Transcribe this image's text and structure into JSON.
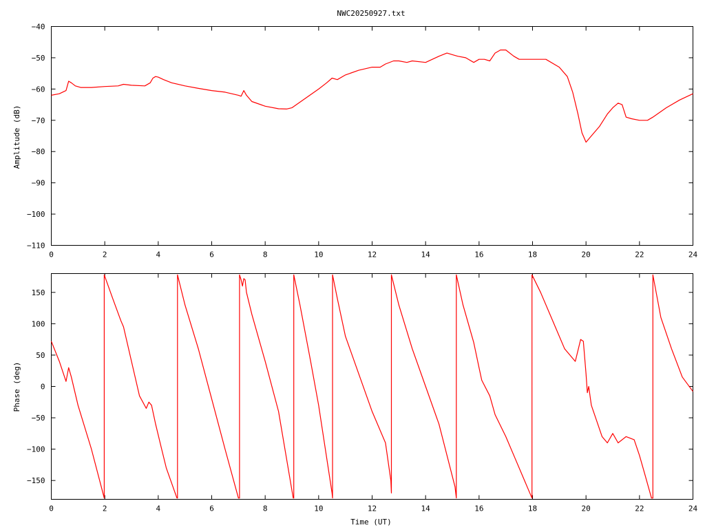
{
  "title": "NWC20250927.txt",
  "colors": {
    "series": "#ff0000",
    "axes": "#000000",
    "background": "#ffffff"
  },
  "chart_data": [
    {
      "type": "line",
      "xlabel": "",
      "ylabel": "Amplitude (dB)",
      "xlim": [
        0,
        24
      ],
      "ylim": [
        -110,
        -40
      ],
      "xticks": [
        0,
        2,
        4,
        6,
        8,
        10,
        12,
        14,
        16,
        18,
        20,
        22,
        24
      ],
      "yticks": [
        -110,
        -100,
        -90,
        -80,
        -70,
        -60,
        -50,
        -40
      ],
      "xtick_labels": [
        "0",
        "2",
        "4",
        "6",
        "8",
        "10",
        "12",
        "14",
        "16",
        "18",
        "20",
        "22",
        "24"
      ],
      "ytick_labels": [
        "−110",
        "−100",
        "−90",
        "−80",
        "−70",
        "−60",
        "−50",
        "−40"
      ],
      "grid": false,
      "series": [
        {
          "color": "#ff0000",
          "x": [
            0,
            0.3,
            0.55,
            0.65,
            0.75,
            0.9,
            1.1,
            1.3,
            1.5,
            2.0,
            2.5,
            2.7,
            3.0,
            3.5,
            3.7,
            3.8,
            3.9,
            4.0,
            4.2,
            4.5,
            5.0,
            5.5,
            6.0,
            6.5,
            7.0,
            7.1,
            7.2,
            7.3,
            7.5,
            8.0,
            8.5,
            8.8,
            9.0,
            9.5,
            10.0,
            10.3,
            10.5,
            10.7,
            11.0,
            11.5,
            12.0,
            12.3,
            12.5,
            12.8,
            13.0,
            13.3,
            13.5,
            14.0,
            14.5,
            14.8,
            15.0,
            15.2,
            15.5,
            15.8,
            16.0,
            16.2,
            16.4,
            16.6,
            16.8,
            17.0,
            17.3,
            17.5,
            18.0,
            18.5,
            19.0,
            19.3,
            19.5,
            19.7,
            19.85,
            20.0,
            20.2,
            20.5,
            20.8,
            21.0,
            21.2,
            21.35,
            21.5,
            21.7,
            22.0,
            22.3,
            22.5,
            23.0,
            23.5,
            24.0
          ],
          "y": [
            -62,
            -61.5,
            -60.5,
            -57.5,
            -58,
            -59,
            -59.5,
            -59.5,
            -59.5,
            -59.2,
            -59,
            -58.5,
            -58.8,
            -59,
            -58,
            -56.5,
            -56,
            -56.2,
            -57,
            -58,
            -59,
            -59.8,
            -60.5,
            -61,
            -62,
            -62.3,
            -60.5,
            -62,
            -64,
            -65.5,
            -66.3,
            -66.4,
            -66,
            -63,
            -60,
            -58,
            -56.5,
            -57,
            -55.5,
            -54,
            -53,
            -53,
            -52,
            -51,
            -51,
            -51.5,
            -51,
            -51.5,
            -49.5,
            -48.5,
            -49,
            -49.5,
            -50,
            -51.5,
            -50.5,
            -50.5,
            -51,
            -48.5,
            -47.5,
            -47.5,
            -49.5,
            -50.5,
            -50.5,
            -50.5,
            -53,
            -56,
            -61,
            -68,
            -74,
            -77,
            -75,
            -72,
            -68,
            -66,
            -64.5,
            -65,
            -69,
            -69.5,
            -70,
            -70,
            -69,
            -66,
            -63.5,
            -61.5
          ]
        }
      ]
    },
    {
      "type": "line",
      "xlabel": "Time (UT)",
      "ylabel": "Phase (deg)",
      "xlim": [
        0,
        24
      ],
      "ylim": [
        -180,
        180
      ],
      "xticks": [
        0,
        2,
        4,
        6,
        8,
        10,
        12,
        14,
        16,
        18,
        20,
        22,
        24
      ],
      "yticks": [
        -150,
        -100,
        -50,
        0,
        50,
        100,
        150
      ],
      "xtick_labels": [
        "0",
        "2",
        "4",
        "6",
        "8",
        "10",
        "12",
        "14",
        "16",
        "18",
        "20",
        "22",
        "24"
      ],
      "ytick_labels": [
        "−150",
        "−100",
        "−50",
        "0",
        "50",
        "100",
        "150"
      ],
      "grid": false,
      "series": [
        {
          "color": "#ff0000",
          "x": [
            0,
            0.3,
            0.55,
            0.65,
            0.75,
            1.0,
            1.5,
            1.98,
            1.98,
            2.3,
            2.6,
            2.7,
            3.0,
            3.3,
            3.55,
            3.65,
            3.75,
            3.9,
            4.1,
            4.3,
            4.7,
            4.72,
            4.72,
            5.0,
            5.5,
            6.0,
            6.5,
            7.0,
            7.04,
            7.04,
            7.1,
            7.15,
            7.2,
            7.25,
            7.3,
            7.5,
            8.0,
            8.5,
            9.05,
            9.07,
            9.07,
            9.3,
            9.7,
            10.0,
            10.5,
            10.52,
            10.52,
            10.7,
            11.0,
            11.5,
            12.0,
            12.5,
            12.7,
            12.72,
            12.72,
            13.0,
            13.5,
            14.0,
            14.5,
            15.1,
            15.15,
            15.15,
            15.4,
            15.8,
            16.0,
            16.1,
            16.4,
            16.6,
            17.0,
            17.4,
            17.8,
            17.98,
            17.98,
            18.3,
            18.8,
            19.2,
            19.6,
            19.8,
            19.9,
            20.0,
            20.05,
            20.1,
            20.2,
            20.4,
            20.6,
            20.8,
            21.0,
            21.2,
            21.5,
            21.8,
            22.0,
            22.2,
            22.45,
            22.5,
            22.5,
            22.8,
            23.2,
            23.6,
            24.0
          ],
          "y": [
            72,
            40,
            8,
            30,
            15,
            -30,
            -100,
            -178,
            178,
            140,
            105,
            95,
            40,
            -15,
            -35,
            -25,
            -30,
            -60,
            -95,
            -130,
            -178,
            -178,
            178,
            130,
            60,
            -20,
            -100,
            -178,
            -178,
            178,
            170,
            160,
            172,
            170,
            150,
            115,
            40,
            -40,
            -178,
            -178,
            178,
            130,
            40,
            -30,
            -170,
            -178,
            178,
            140,
            80,
            20,
            -40,
            -90,
            -150,
            -170,
            178,
            130,
            60,
            0,
            -60,
            -160,
            -178,
            178,
            130,
            70,
            30,
            10,
            -15,
            -45,
            -80,
            -120,
            -160,
            -178,
            178,
            150,
            100,
            60,
            40,
            75,
            72,
            20,
            -10,
            0,
            -30,
            -55,
            -80,
            -90,
            -75,
            -90,
            -80,
            -85,
            -110,
            -140,
            -178,
            -178,
            178,
            110,
            60,
            15,
            -8
          ]
        }
      ]
    }
  ]
}
